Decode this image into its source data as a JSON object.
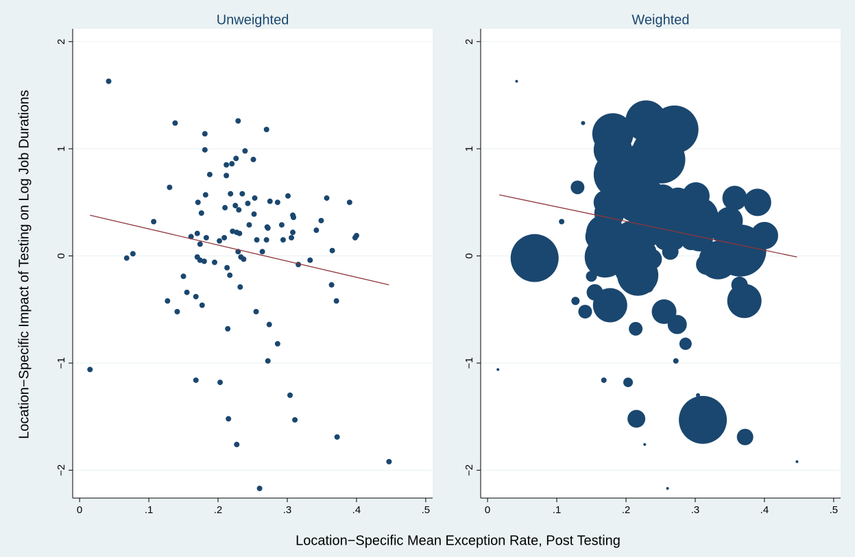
{
  "chart_data": [
    {
      "type": "scatter",
      "title": "Unweighted",
      "xlabel": "Location−Specific Mean Exception Rate, Post Testing",
      "ylabel": "Location−Specific Impact of Testing on Log Job Durations",
      "color": "#1a476f",
      "fit_color": "#90353b",
      "x": [
        0.042,
        0.015,
        0.068,
        0.077,
        0.107,
        0.13,
        0.138,
        0.127,
        0.141,
        0.15,
        0.155,
        0.161,
        0.168,
        0.168,
        0.17,
        0.171,
        0.17,
        0.174,
        0.174,
        0.176,
        0.177,
        0.18,
        0.181,
        0.181,
        0.182,
        0.183,
        0.188,
        0.195,
        0.202,
        0.203,
        0.209,
        0.21,
        0.212,
        0.212,
        0.213,
        0.214,
        0.215,
        0.217,
        0.218,
        0.22,
        0.221,
        0.225,
        0.226,
        0.227,
        0.227,
        0.229,
        0.229,
        0.23,
        0.231,
        0.232,
        0.233,
        0.235,
        0.237,
        0.239,
        0.243,
        0.245,
        0.251,
        0.252,
        0.253,
        0.255,
        0.256,
        0.26,
        0.264,
        0.27,
        0.27,
        0.271,
        0.272,
        0.272,
        0.274,
        0.275,
        0.286,
        0.286,
        0.292,
        0.294,
        0.301,
        0.304,
        0.306,
        0.308,
        0.308,
        0.309,
        0.311,
        0.316,
        0.333,
        0.342,
        0.349,
        0.357,
        0.364,
        0.365,
        0.371,
        0.372,
        0.39,
        0.398,
        0.4,
        0.447
      ],
      "y": [
        1.63,
        -1.06,
        -0.02,
        0.02,
        0.32,
        0.64,
        1.24,
        -0.42,
        -0.52,
        -0.19,
        -0.34,
        0.18,
        -0.38,
        -1.16,
        0.21,
        0.5,
        -0.01,
        0.11,
        -0.04,
        0.4,
        -0.46,
        -0.05,
        1.14,
        0.99,
        0.57,
        0.17,
        0.76,
        -0.06,
        0.14,
        -1.18,
        0.17,
        0.45,
        0.85,
        0.75,
        -0.11,
        -0.68,
        -1.52,
        -0.18,
        0.58,
        0.86,
        0.23,
        0.47,
        0.91,
        0.22,
        -1.76,
        1.26,
        0.04,
        0.43,
        0.21,
        -0.29,
        -0.01,
        0.58,
        -0.03,
        0.98,
        0.49,
        0.29,
        0.9,
        0.39,
        0.54,
        -0.52,
        0.15,
        -2.17,
        0.04,
        1.18,
        0.15,
        0.27,
        0.26,
        -0.98,
        -0.64,
        0.51,
        0.5,
        -0.82,
        0.29,
        0.15,
        0.56,
        -1.3,
        0.17,
        0.22,
        0.38,
        0.36,
        -1.53,
        -0.08,
        -0.04,
        0.24,
        0.33,
        0.54,
        -0.27,
        0.05,
        -0.42,
        -1.69,
        0.5,
        0.17,
        0.19,
        -1.92
      ],
      "fit": {
        "x": [
          0.015,
          0.447
        ],
        "y": [
          0.38,
          -0.27
        ]
      },
      "xlim": [
        -0.01,
        0.51
      ],
      "ylim": [
        -2.26,
        2.12
      ],
      "xticks": [
        0,
        {
          "value": 0.1,
          "label": ".1"
        },
        {
          "value": 0.2,
          "label": ".2"
        },
        {
          "value": 0.3,
          "label": ".3"
        },
        {
          "value": 0.4,
          "label": ".4"
        },
        {
          "value": 0.5,
          "label": ".5"
        }
      ],
      "yticks": [
        {
          "value": -2,
          "label": "−2"
        },
        {
          "value": -1,
          "label": "−1"
        },
        0,
        1,
        2
      ],
      "grid": true
    },
    {
      "type": "bubble",
      "title": "Weighted",
      "color": "#1a476f",
      "fit_color": "#90353b",
      "x": [
        0.042,
        0.015,
        0.068,
        0.077,
        0.107,
        0.13,
        0.138,
        0.127,
        0.141,
        0.15,
        0.155,
        0.161,
        0.168,
        0.168,
        0.17,
        0.171,
        0.17,
        0.174,
        0.174,
        0.176,
        0.177,
        0.18,
        0.181,
        0.181,
        0.182,
        0.183,
        0.188,
        0.195,
        0.202,
        0.203,
        0.209,
        0.21,
        0.212,
        0.212,
        0.213,
        0.214,
        0.215,
        0.217,
        0.218,
        0.22,
        0.221,
        0.225,
        0.226,
        0.227,
        0.227,
        0.229,
        0.229,
        0.23,
        0.231,
        0.232,
        0.233,
        0.235,
        0.237,
        0.239,
        0.243,
        0.245,
        0.251,
        0.252,
        0.253,
        0.255,
        0.256,
        0.26,
        0.264,
        0.27,
        0.27,
        0.271,
        0.272,
        0.272,
        0.274,
        0.275,
        0.286,
        0.286,
        0.292,
        0.294,
        0.301,
        0.304,
        0.306,
        0.308,
        0.308,
        0.309,
        0.311,
        0.316,
        0.333,
        0.342,
        0.349,
        0.357,
        0.364,
        0.365,
        0.371,
        0.372,
        0.39,
        0.398,
        0.4,
        0.447
      ],
      "y": [
        1.63,
        -1.06,
        -0.02,
        0.02,
        0.32,
        0.64,
        1.24,
        -0.42,
        -0.52,
        -0.19,
        -0.34,
        0.18,
        -0.38,
        -1.16,
        0.21,
        0.5,
        -0.01,
        0.11,
        -0.04,
        0.4,
        -0.46,
        -0.05,
        1.14,
        0.99,
        0.57,
        0.17,
        0.76,
        -0.06,
        0.14,
        -1.18,
        0.17,
        0.45,
        0.85,
        0.75,
        -0.11,
        -0.68,
        -1.52,
        -0.18,
        0.58,
        0.86,
        0.23,
        0.47,
        0.91,
        0.22,
        -1.76,
        1.26,
        0.04,
        0.43,
        0.21,
        -0.29,
        -0.01,
        0.58,
        -0.03,
        0.98,
        0.49,
        0.29,
        0.9,
        0.39,
        0.54,
        -0.52,
        0.15,
        -2.17,
        0.04,
        1.18,
        0.15,
        0.27,
        0.26,
        -0.98,
        -0.64,
        0.51,
        0.5,
        -0.82,
        0.29,
        0.15,
        0.56,
        -1.3,
        0.17,
        0.22,
        0.38,
        0.36,
        -1.53,
        -0.08,
        -0.04,
        0.24,
        0.33,
        0.54,
        -0.27,
        0.05,
        -0.42,
        -1.69,
        0.5,
        0.17,
        0.19,
        -1.92
      ],
      "sizes": [
        4,
        4,
        1225,
        9,
        16,
        100,
        9,
        36,
        100,
        64,
        144,
        400,
        16,
        16,
        784,
        324,
        900,
        225,
        225,
        484,
        625,
        400,
        900,
        784,
        225,
        400,
        1225,
        225,
        225,
        49,
        625,
        400,
        625,
        1225,
        900,
        100,
        169,
        900,
        400,
        225,
        400,
        400,
        625,
        400,
        4,
        900,
        225,
        400,
        400,
        64,
        225,
        400,
        225,
        900,
        400,
        400,
        1225,
        400,
        400,
        324,
        225,
        4,
        144,
        1225,
        225,
        400,
        225,
        16,
        196,
        400,
        400,
        81,
        400,
        225,
        400,
        9,
        400,
        400,
        625,
        625,
        1225,
        225,
        784,
        400,
        400,
        324,
        144,
        1444,
        625,
        144,
        400,
        225,
        400,
        4
      ],
      "fit": {
        "x": [
          0.017,
          0.447
        ],
        "y": [
          0.57,
          -0.01
        ]
      },
      "xlim": [
        -0.01,
        0.51
      ],
      "ylim": [
        -2.26,
        2.12
      ],
      "xticks": [
        0,
        {
          "value": 0.1,
          "label": ".1"
        },
        {
          "value": 0.2,
          "label": ".2"
        },
        {
          "value": 0.3,
          "label": ".3"
        },
        {
          "value": 0.4,
          "label": ".4"
        },
        {
          "value": 0.5,
          "label": ".5"
        }
      ],
      "yticks": [
        {
          "value": -2,
          "label": "−2"
        },
        {
          "value": -1,
          "label": "−1"
        },
        0,
        1,
        2
      ],
      "grid": true
    }
  ]
}
